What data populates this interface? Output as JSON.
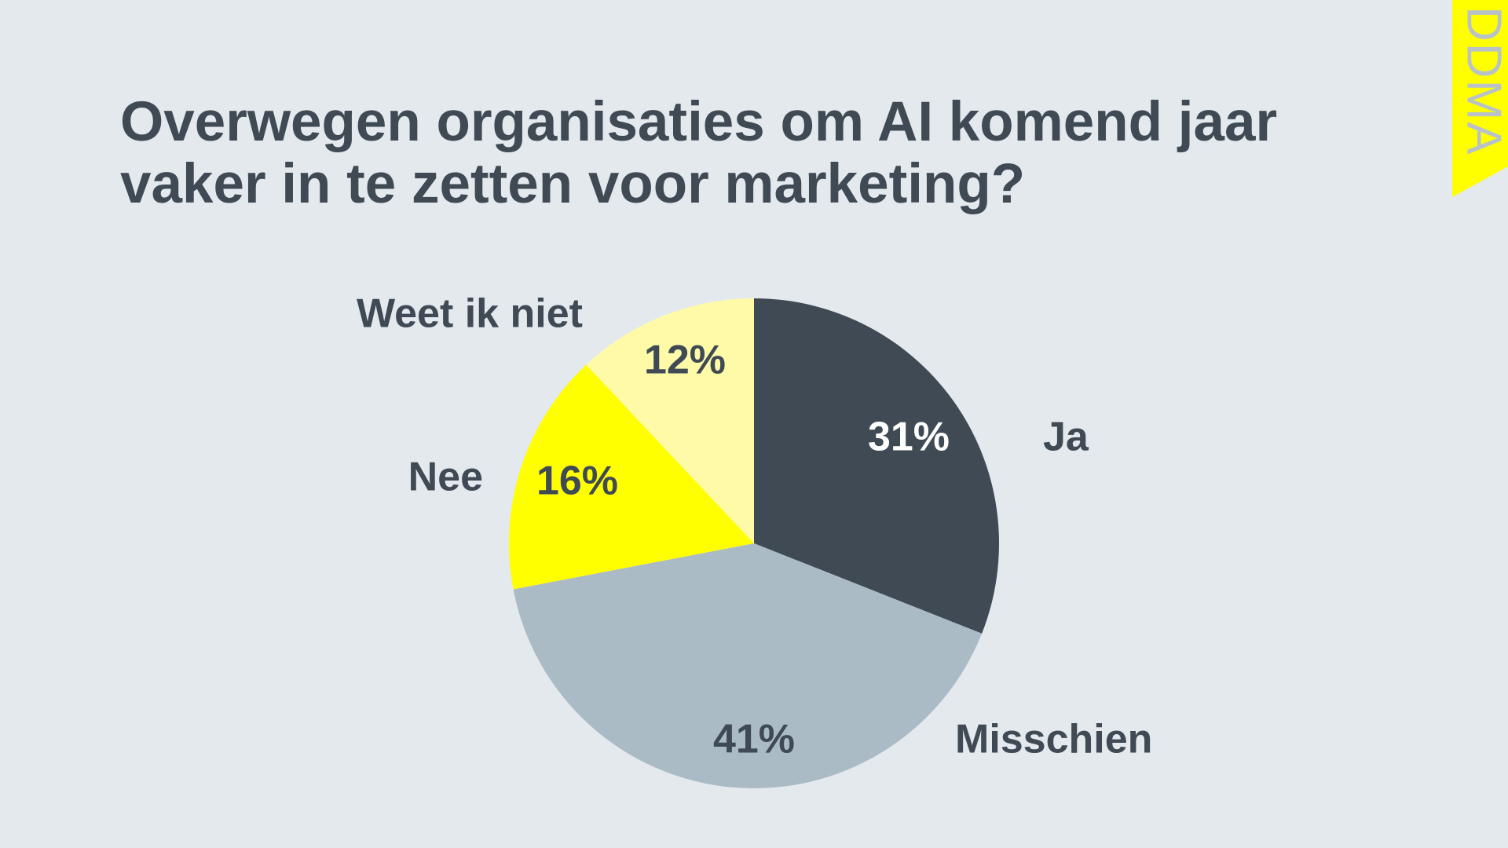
{
  "logo": "DDMA",
  "chart_data": {
    "type": "pie",
    "title": "Overwegen organisaties om AI komend jaar vaker in te zetten voor marketing?",
    "categories": [
      "Ja",
      "Misschien",
      "Nee",
      "Weet ik niet"
    ],
    "values": [
      31,
      41,
      16,
      12
    ],
    "value_labels": [
      "31%",
      "41%",
      "16%",
      "12%"
    ],
    "colors": [
      "#3f4a55",
      "#abbbc6",
      "#ffff00",
      "#fffaa8"
    ]
  }
}
